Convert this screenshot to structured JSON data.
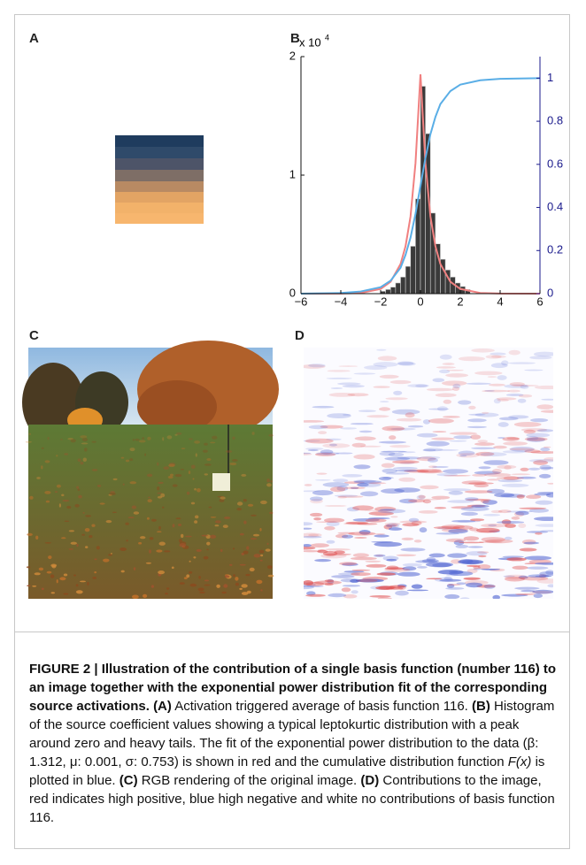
{
  "panel_labels": [
    "A",
    "B",
    "C",
    "D"
  ],
  "chart_data": {
    "type": "histogram",
    "y_multiplier": {
      "base": "x 10",
      "exponent": "4"
    },
    "bins": [
      -2,
      -1.75,
      -1.5,
      -1.25,
      -1,
      -0.75,
      -0.5,
      -0.25,
      0,
      0.25,
      0.5,
      0.75,
      1,
      1.25,
      1.5,
      1.75,
      2,
      2.25,
      2.5
    ],
    "counts": [
      200,
      350,
      550,
      900,
      1400,
      2300,
      4000,
      8000,
      17500,
      13500,
      6800,
      4200,
      2900,
      2000,
      1400,
      900,
      600,
      350
    ],
    "bar_color": "#3a3a3a",
    "series": [
      {
        "color": "#f08080",
        "x": [
          -6,
          -4,
          -3,
          -2,
          -1.5,
          -1,
          -0.75,
          -0.5,
          -0.25,
          0,
          0.25,
          0.5,
          0.75,
          1,
          1.5,
          2,
          3,
          4,
          6
        ],
        "values": [
          0,
          10,
          60,
          400,
          1000,
          2500,
          4000,
          6500,
          11000,
          18500,
          11000,
          6500,
          4000,
          2500,
          1000,
          400,
          60,
          10,
          0
        ]
      },
      {
        "color": "#5aaee6",
        "axis": "y2",
        "x": [
          -6,
          -4,
          -3,
          -2,
          -1.5,
          -1,
          -0.75,
          -0.5,
          -0.25,
          0,
          0.25,
          0.5,
          0.75,
          1,
          1.5,
          2,
          3,
          4,
          6
        ],
        "values": [
          0,
          0.003,
          0.01,
          0.03,
          0.06,
          0.12,
          0.18,
          0.26,
          0.37,
          0.5,
          0.63,
          0.74,
          0.82,
          0.88,
          0.94,
          0.97,
          0.99,
          0.997,
          1
        ]
      }
    ],
    "xlim": [
      -6,
      6
    ],
    "xticks": [
      {
        "value": -6,
        "label": "−6"
      },
      {
        "value": -4,
        "label": "−4"
      },
      {
        "value": -2,
        "label": "−2"
      },
      0,
      2,
      4,
      6
    ],
    "ylim": [
      0,
      20000
    ],
    "yticks": [
      {
        "value": 0,
        "label": "0"
      },
      {
        "value": 10000,
        "label": "1"
      },
      {
        "value": 20000,
        "label": "2"
      }
    ],
    "y2lim": [
      0,
      1.1
    ],
    "y2ticks": [
      0,
      0.2,
      0.4,
      0.6,
      0.8,
      1
    ],
    "y2_color": "#1a1a8c"
  },
  "caption": {
    "heading": "FIGURE 2 | Illustration of the contribution of a single basis function (number 116) to an image together with the exponential power distribution fit of the corresponding source activations.",
    "items": [
      {
        "label": "(A)",
        "text": "Activation triggered average of basis function 116."
      },
      {
        "label": "(B)",
        "text": "Histogram of the source coefficient values showing a typical leptokurtic distribution with a peak around zero and heavy tails. The fit of the exponential power distribution to the data (β: 1.312, μ: 0.001, σ: 0.753) is shown in red and the cumulative distribution function",
        "formula": "F(x)",
        "after": "is plotted in blue."
      },
      {
        "label": "(C)",
        "text": "RGB rendering of the original image."
      },
      {
        "label": "(D)",
        "text": "Contributions to the image, red indicates high positive, blue high negative and white no contributions of basis function 116."
      }
    ]
  }
}
